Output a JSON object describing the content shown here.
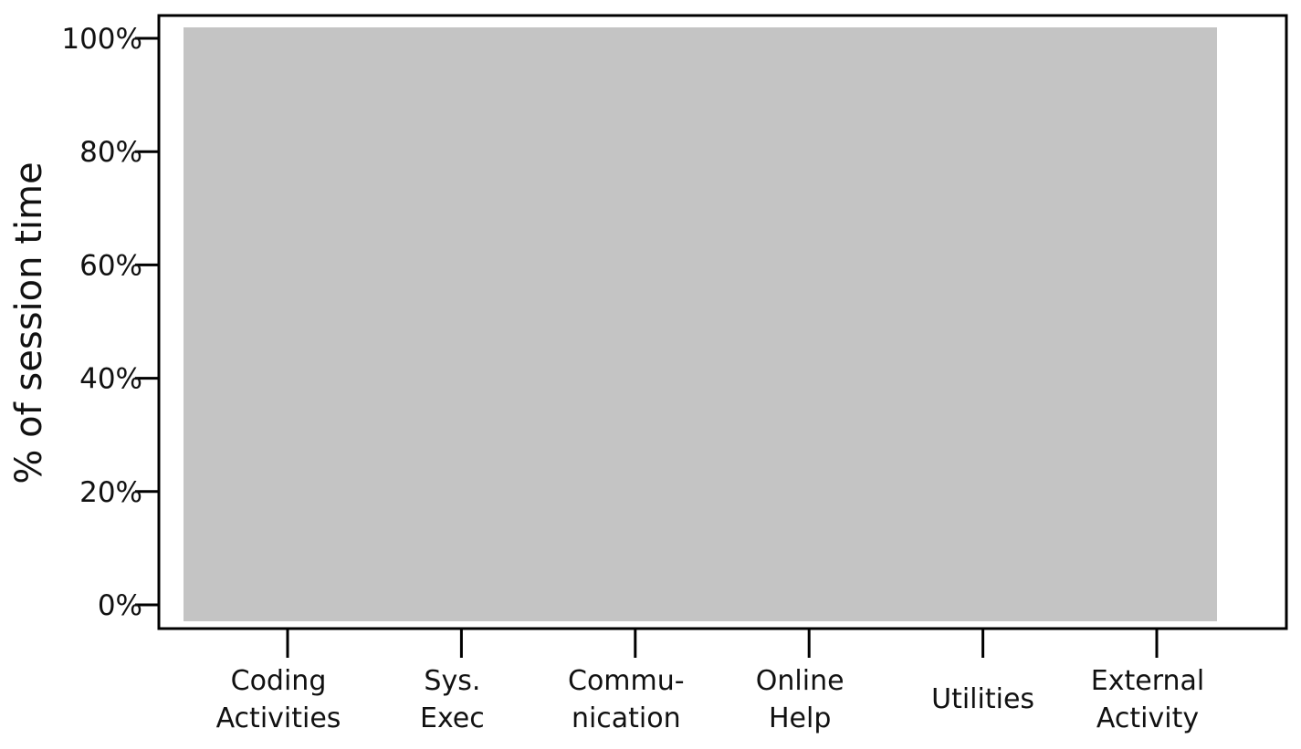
{
  "chart_data": {
    "type": "bar",
    "title": "",
    "xlabel": "",
    "ylabel": "% of session time",
    "ylim": [
      0,
      100
    ],
    "yticks": [
      0,
      20,
      40,
      60,
      80,
      100
    ],
    "ytick_labels": [
      "0%",
      "20%",
      "40%",
      "60%",
      "80%",
      "100%"
    ],
    "categories": [
      {
        "line1": "Coding",
        "line2": "Activities"
      },
      {
        "line1": "Sys.",
        "line2": "Exec"
      },
      {
        "line1": "Commu-",
        "line2": "nication"
      },
      {
        "line1": "Online",
        "line2": "Help"
      },
      {
        "line1": "Utilities",
        "line2": ""
      },
      {
        "line1": "External",
        "line2": "Activity"
      }
    ],
    "background_band_color": "#c4c4c4",
    "grid": false,
    "legend": "none"
  }
}
